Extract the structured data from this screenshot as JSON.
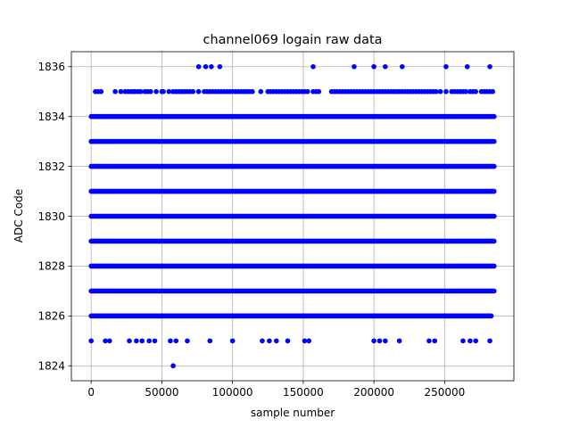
{
  "chart_data": {
    "type": "scatter",
    "title": "channel069 logain raw data",
    "xlabel": "sample number",
    "ylabel": "ADC Code",
    "xlim": [
      -14000,
      299000
    ],
    "ylim": [
      1823.4,
      1836.6
    ],
    "xticks": [
      0,
      50000,
      100000,
      150000,
      200000,
      250000
    ],
    "xtick_labels": [
      "0",
      "50000",
      "100000",
      "150000",
      "200000",
      "250000"
    ],
    "yticks": [
      1824,
      1826,
      1828,
      1830,
      1832,
      1834,
      1836
    ],
    "ytick_labels": [
      "1824",
      "1826",
      "1828",
      "1830",
      "1832",
      "1834",
      "1836"
    ],
    "grid": true,
    "marker_color": "#0000ff",
    "series": [
      {
        "dense_bands": [
          {
            "y": 1826,
            "x": [
              0,
              283000
            ]
          },
          {
            "y": 1827,
            "x": [
              0,
              285000
            ]
          },
          {
            "y": 1828,
            "x": [
              0,
              285000
            ]
          },
          {
            "y": 1829,
            "x": [
              0,
              285000
            ]
          },
          {
            "y": 1830,
            "x": [
              0,
              285000
            ]
          },
          {
            "y": 1831,
            "x": [
              0,
              285000
            ]
          },
          {
            "y": 1832,
            "x": [
              0,
              285000
            ]
          },
          {
            "y": 1833,
            "x": [
              0,
              285000
            ]
          },
          {
            "y": 1834,
            "x": [
              0,
              285000
            ]
          }
        ],
        "points": [
          {
            "x": 58000,
            "y": 1824
          },
          {
            "x": 0,
            "y": 1825
          },
          {
            "x": 10000,
            "y": 1825
          },
          {
            "x": 13000,
            "y": 1825
          },
          {
            "x": 27000,
            "y": 1825
          },
          {
            "x": 32000,
            "y": 1825
          },
          {
            "x": 36000,
            "y": 1825
          },
          {
            "x": 41000,
            "y": 1825
          },
          {
            "x": 45000,
            "y": 1825
          },
          {
            "x": 56000,
            "y": 1825
          },
          {
            "x": 60000,
            "y": 1825
          },
          {
            "x": 68000,
            "y": 1825
          },
          {
            "x": 84000,
            "y": 1825
          },
          {
            "x": 100000,
            "y": 1825
          },
          {
            "x": 121000,
            "y": 1825
          },
          {
            "x": 126000,
            "y": 1825
          },
          {
            "x": 131000,
            "y": 1825
          },
          {
            "x": 139000,
            "y": 1825
          },
          {
            "x": 151000,
            "y": 1825
          },
          {
            "x": 154000,
            "y": 1825
          },
          {
            "x": 200000,
            "y": 1825
          },
          {
            "x": 204000,
            "y": 1825
          },
          {
            "x": 208000,
            "y": 1825
          },
          {
            "x": 218000,
            "y": 1825
          },
          {
            "x": 239000,
            "y": 1825
          },
          {
            "x": 243000,
            "y": 1825
          },
          {
            "x": 263000,
            "y": 1825
          },
          {
            "x": 268000,
            "y": 1825
          },
          {
            "x": 272000,
            "y": 1825
          },
          {
            "x": 282000,
            "y": 1825
          },
          {
            "x": 76000,
            "y": 1836
          },
          {
            "x": 81000,
            "y": 1836
          },
          {
            "x": 85000,
            "y": 1836
          },
          {
            "x": 91000,
            "y": 1836
          },
          {
            "x": 157000,
            "y": 1836
          },
          {
            "x": 186000,
            "y": 1836
          },
          {
            "x": 200000,
            "y": 1836
          },
          {
            "x": 208000,
            "y": 1836
          },
          {
            "x": 220000,
            "y": 1836
          },
          {
            "x": 251000,
            "y": 1836
          },
          {
            "x": 266000,
            "y": 1836
          },
          {
            "x": 282000,
            "y": 1836
          }
        ],
        "sparse_band_y": 1835,
        "sparse_band_x": [
          3000,
          5000,
          7000,
          17000,
          21000,
          24000,
          26000,
          28000,
          30000,
          31000,
          33000,
          35000,
          38000,
          40000,
          42000,
          46000,
          50000,
          51000,
          55000,
          58000,
          60000,
          62000,
          64000,
          66000,
          68000,
          70000,
          72000,
          76000,
          80000,
          82000,
          84000,
          86000,
          88000,
          90000,
          92000,
          94000,
          96000,
          98000,
          100000,
          102000,
          104000,
          106000,
          108000,
          110000,
          112000,
          114000,
          120000,
          125000,
          127000,
          129000,
          131000,
          133000,
          135000,
          137000,
          139000,
          141000,
          143000,
          145000,
          147000,
          149000,
          151000,
          153000,
          157000,
          159000,
          161000,
          170000,
          172000,
          174000,
          176000,
          178000,
          180000,
          182000,
          184000,
          186000,
          188000,
          190000,
          192000,
          194000,
          196000,
          198000,
          200000,
          202000,
          204000,
          206000,
          208000,
          210000,
          212000,
          214000,
          216000,
          218000,
          220000,
          222000,
          224000,
          226000,
          228000,
          230000,
          232000,
          234000,
          236000,
          238000,
          240000,
          242000,
          244000,
          247000,
          251000,
          255000,
          257000,
          259000,
          261000,
          263000,
          265000,
          268000,
          270000,
          272000,
          276000,
          278000,
          280000,
          282000,
          284000
        ]
      }
    ]
  }
}
